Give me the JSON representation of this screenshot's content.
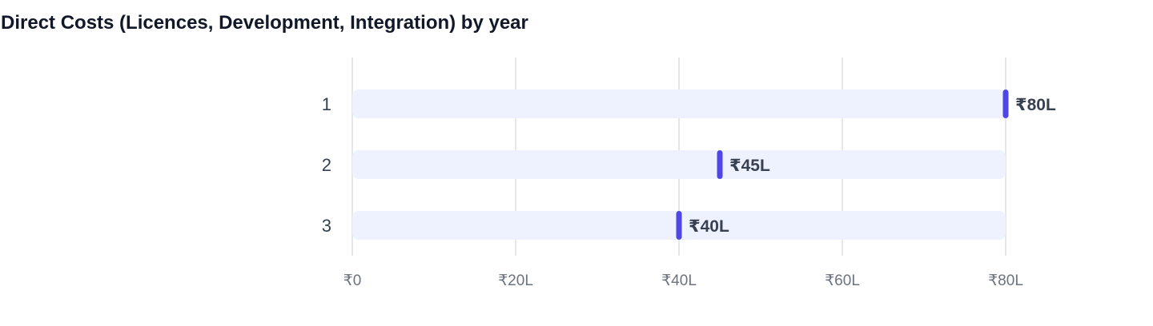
{
  "chart_data": {
    "type": "bar",
    "title": "Direct Costs (Licences, Development, Integration) by year",
    "xlabel": "",
    "ylabel": "",
    "categories": [
      "1",
      "2",
      "3"
    ],
    "values": [
      80,
      45,
      40
    ],
    "value_labels": [
      "₹80L",
      "₹45L",
      "₹40L"
    ],
    "unit": "L (lakh ₹)",
    "xlim": [
      0,
      80
    ],
    "ticks": [
      0,
      20,
      40,
      60,
      80
    ],
    "tick_labels": [
      "₹0",
      "₹20L",
      "₹40L",
      "₹60L",
      "₹80L"
    ],
    "orientation": "horizontal",
    "grid": true,
    "legend": "none",
    "colors": {
      "marker": "#4f46e5",
      "track": "#eef2ff",
      "grid": "#e5e7eb",
      "title": "#111827",
      "label": "#374151",
      "tick": "#6b7280"
    }
  }
}
